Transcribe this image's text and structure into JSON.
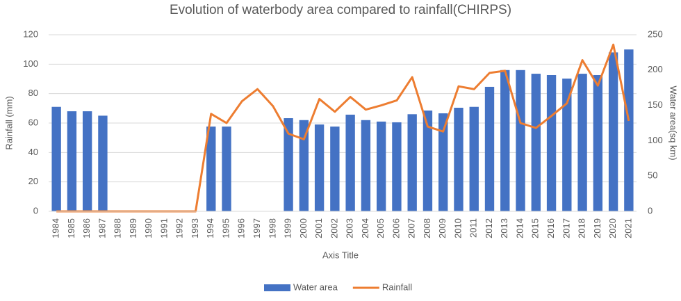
{
  "chart_data": {
    "type": "bar-line",
    "title": "Evolution of waterbody area compared to rainfall(CHIRPS)",
    "x_label": "Axis Title",
    "y_label": "Rainfall (mm)",
    "y2_label": "Water area(sq km)",
    "categories": [
      "1984",
      "1985",
      "1986",
      "1987",
      "1988",
      "1989",
      "1990",
      "1991",
      "1992",
      "1993",
      "1994",
      "1995",
      "1996",
      "1997",
      "1998",
      "1999",
      "2000",
      "2001",
      "2002",
      "2003",
      "2004",
      "2005",
      "2006",
      "2007",
      "2008",
      "2009",
      "2010",
      "2011",
      "2012",
      "2013",
      "2014",
      "2015",
      "2016",
      "2017",
      "2018",
      "2019",
      "2020",
      "2021"
    ],
    "series": [
      {
        "name": "Water area",
        "type": "bar",
        "color": "#4472c4",
        "values": [
          71,
          68,
          68,
          65,
          null,
          null,
          null,
          null,
          null,
          null,
          57.6,
          57.6,
          null,
          null,
          null,
          63.3,
          62,
          59,
          57.6,
          65.7,
          62,
          61,
          60.5,
          66,
          68.5,
          66.6,
          70.4,
          71,
          84.6,
          96,
          96,
          93.5,
          92.6,
          90.2,
          93.5,
          92.6,
          108,
          110
        ]
      },
      {
        "name": "Rainfall",
        "type": "line",
        "color": "#ed7d31",
        "axis": "y2",
        "values": [
          0,
          0,
          0,
          0,
          0,
          0,
          0,
          0,
          0,
          0,
          138,
          125,
          156,
          173,
          149,
          110,
          102,
          159,
          141,
          162,
          144,
          150,
          157,
          190,
          120,
          113,
          177,
          173,
          196,
          199,
          125,
          118,
          135,
          153,
          214,
          178,
          236,
          128
        ]
      }
    ],
    "ylim": [
      0,
      120
    ],
    "yticks": [
      0,
      20,
      40,
      60,
      80,
      100,
      120
    ],
    "y2lim": [
      0,
      250
    ],
    "y2ticks": [
      0,
      50,
      100,
      150,
      200,
      250
    ],
    "grid": true,
    "legend": "bottom"
  }
}
